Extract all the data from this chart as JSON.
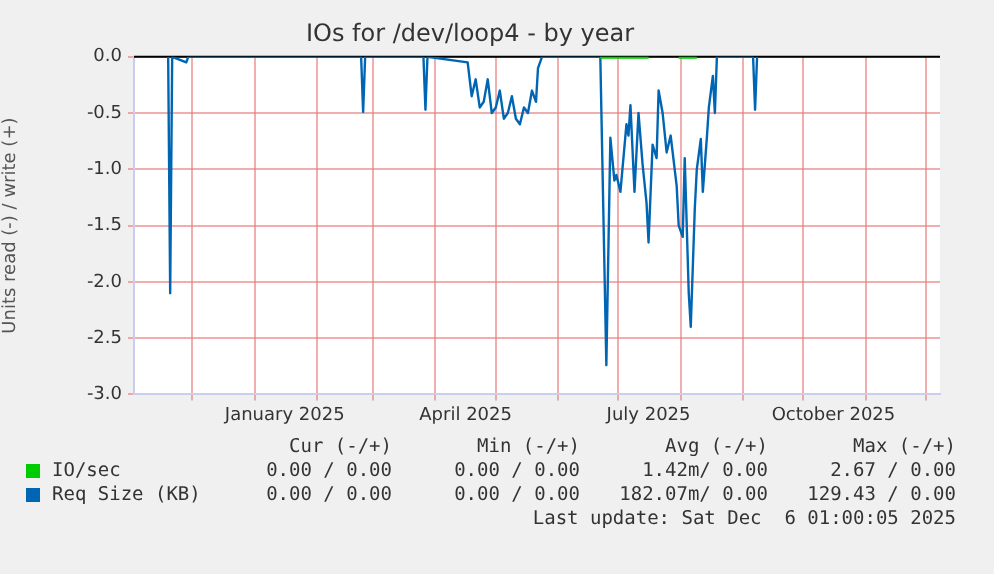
{
  "chart_data": {
    "type": "line",
    "title": "IOs for /dev/loop4 - by year",
    "ylabel": "Units read (-) / write (+)",
    "xlim": [
      "2024-11-02",
      "2025-12-08"
    ],
    "xticks": [
      {
        "value": "2024-12-01",
        "label": null
      },
      {
        "value": "2025-01-01",
        "label": null
      },
      {
        "value": "2025-01-16",
        "label": "January 2025"
      },
      {
        "value": "2025-02-01",
        "label": null
      },
      {
        "value": "2025-03-01",
        "label": null
      },
      {
        "value": "2025-04-01",
        "label": null
      },
      {
        "value": "2025-04-16",
        "label": "April 2025"
      },
      {
        "value": "2025-05-01",
        "label": null
      },
      {
        "value": "2025-06-01",
        "label": null
      },
      {
        "value": "2025-07-01",
        "label": null
      },
      {
        "value": "2025-07-16",
        "label": "July 2025"
      },
      {
        "value": "2025-08-01",
        "label": null
      },
      {
        "value": "2025-09-01",
        "label": null
      },
      {
        "value": "2025-10-01",
        "label": null
      },
      {
        "value": "2025-10-16",
        "label": "October 2025"
      },
      {
        "value": "2025-11-01",
        "label": null
      },
      {
        "value": "2025-12-01",
        "label": null
      }
    ],
    "ylim": [
      -3,
      0
    ],
    "yticks": [
      {
        "value": -3,
        "label": "-3.0"
      },
      -2.5,
      {
        "value": -2,
        "label": "-2.0"
      },
      -1.5,
      {
        "value": -1,
        "label": "-1.0"
      },
      -0.5,
      {
        "value": 0,
        "label": "0.0"
      }
    ],
    "grid": true,
    "legend": "bottom",
    "marker": "none",
    "ref_lines": [
      {
        "axis": "y",
        "value": 0,
        "label": null,
        "color": "#000000"
      }
    ],
    "series": [
      {
        "name": "IO/sec",
        "color": "#00cc00",
        "x": [
          "2025-06-22",
          "2025-07-16",
          "2025-07-24",
          "2025-07-31",
          "2025-08-09"
        ],
        "values": [
          0,
          0,
          null,
          0,
          0
        ]
      },
      {
        "name": "Req Size (KB)",
        "color": "#0066b3",
        "x": [
          "2024-11-19",
          "2024-11-20",
          "2024-11-21",
          "2024-11-28",
          "2024-11-29",
          "2025-02-23",
          "2025-02-24",
          "2025-02-25",
          "2025-03-26",
          "2025-03-27",
          "2025-03-28",
          "2025-04-17",
          "2025-04-19",
          "2025-04-21",
          "2025-04-23",
          "2025-04-25",
          "2025-04-27",
          "2025-04-29",
          "2025-05-01",
          "2025-05-03",
          "2025-05-05",
          "2025-05-07",
          "2025-05-09",
          "2025-05-11",
          "2025-05-13",
          "2025-05-15",
          "2025-05-17",
          "2025-05-19",
          "2025-05-21",
          "2025-05-22",
          "2025-05-24",
          "2025-06-22",
          "2025-06-25",
          "2025-06-27",
          "2025-06-29",
          "2025-06-30",
          "2025-07-02",
          "2025-07-03",
          "2025-07-05",
          "2025-07-06",
          "2025-07-07",
          "2025-07-09",
          "2025-07-11",
          "2025-07-13",
          "2025-07-15",
          "2025-07-16",
          "2025-07-18",
          "2025-07-20",
          "2025-07-21",
          "2025-07-23",
          "2025-07-25",
          "2025-07-27",
          "2025-07-30",
          "2025-07-31",
          "2025-08-02",
          "2025-08-03",
          "2025-08-05",
          "2025-08-06",
          "2025-08-08",
          "2025-08-09",
          "2025-08-11",
          "2025-08-12",
          "2025-08-14",
          "2025-08-15",
          "2025-08-17",
          "2025-08-18",
          "2025-08-19",
          "2025-09-06",
          "2025-09-07",
          "2025-09-08"
        ],
        "values": [
          0,
          -2.1,
          0,
          -0.05,
          0,
          0,
          -0.49,
          0,
          0,
          -0.47,
          0,
          -0.05,
          -0.35,
          -0.2,
          -0.45,
          -0.4,
          -0.2,
          -0.5,
          -0.45,
          -0.3,
          -0.55,
          -0.5,
          -0.35,
          -0.55,
          -0.6,
          -0.45,
          -0.5,
          -0.3,
          -0.4,
          -0.1,
          0,
          0,
          -2.74,
          -0.72,
          -1.1,
          -1.05,
          -1.2,
          -1,
          -0.6,
          -0.7,
          -0.43,
          -1.2,
          -0.5,
          -0.95,
          -1.3,
          -1.65,
          -0.78,
          -0.9,
          -0.3,
          -0.5,
          -0.85,
          -0.7,
          -1.15,
          -1.5,
          -1.6,
          -0.9,
          -2.1,
          -2.4,
          -1.35,
          -1,
          -0.73,
          -1.2,
          -0.72,
          -0.45,
          -0.17,
          -0.5,
          0,
          0,
          -0.47,
          0
        ]
      }
    ],
    "annotations": [
      "Cur (-/+)",
      "Min (-/+)",
      "Avg (-/+)",
      "Max (-/+)",
      "0.00 / 0.00",
      "0.00 / 0.00",
      "1.42m/ 0.00",
      "2.67 / 0.00",
      "0.00 / 0.00",
      "0.00 / 0.00",
      "182.07m/ 0.00",
      "129.43 / 0.00",
      "Last update: Sat Dec  6 01:00:05 2025"
    ]
  }
}
